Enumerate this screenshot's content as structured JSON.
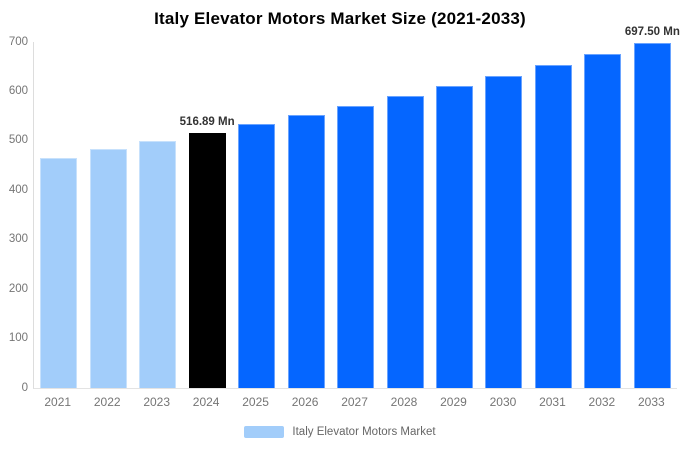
{
  "chart_data": {
    "type": "bar",
    "title": "Italy Elevator Motors Market Size (2021-2033)",
    "categories": [
      "2021",
      "2022",
      "2023",
      "2024",
      "2025",
      "2026",
      "2027",
      "2028",
      "2029",
      "2030",
      "2031",
      "2032",
      "2033"
    ],
    "series": [
      {
        "name": "Italy Elevator Motors Market",
        "values": [
          465.4,
          482.9,
          499.3,
          516.89,
          534.4,
          552.5,
          571.3,
          590.7,
          610.7,
          631.4,
          652.8,
          675.0,
          697.5
        ]
      }
    ],
    "bar_colors": [
      "#a2cdfa",
      "#a2cdfa",
      "#a2cdfa",
      "#000000",
      "#0566ff",
      "#0566ff",
      "#0566ff",
      "#0566ff",
      "#0566ff",
      "#0566ff",
      "#0566ff",
      "#0566ff",
      "#0566ff"
    ],
    "annotations": [
      {
        "index": 3,
        "text": "516.89 Mn"
      },
      {
        "index": 12,
        "text": "697.50 Mn"
      }
    ],
    "xlabel": "",
    "ylabel": "",
    "ylim": [
      0,
      700
    ],
    "yticks": [
      0,
      100,
      200,
      300,
      400,
      500,
      600,
      700
    ],
    "grid": false,
    "legend": {
      "position": "bottom",
      "label": "Italy Elevator Motors Market",
      "swatch_color": "#a2cdfa"
    },
    "colors": {
      "historical_bar": "#a2cdfa",
      "highlight_bar": "#000000",
      "forecast_bar": "#0566ff",
      "axis_line": "#dddddd",
      "tick_text": "#757575",
      "annotation_text": "#333333"
    }
  }
}
